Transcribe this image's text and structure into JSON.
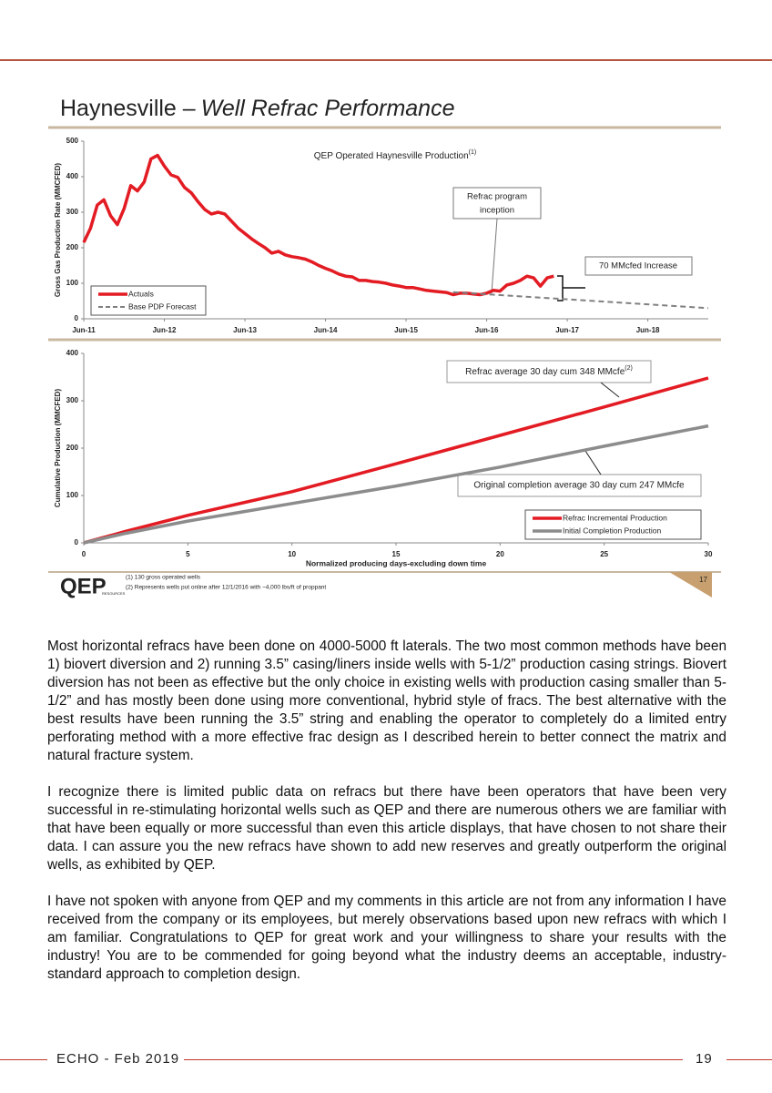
{
  "slide": {
    "title": {
      "main": "Haynesville –",
      "emphasis": "Well Refrac Performance"
    },
    "logo": "QEP",
    "logo_sub": "RESOURCES",
    "footnotes": [
      "(1)   130 gross operated wells",
      "(2)   Represents wells put online after 12/1/2016 with ~4,000 lbs/ft of proppant"
    ],
    "page": "17"
  },
  "chart_data": [
    {
      "type": "line",
      "title": {
        "text": "QEP Operated Haynesville Production",
        "note": "(1)"
      },
      "y_label": "Gross Gas Production Rate (MMCFED)",
      "xlim": [
        "2011-06",
        "2019-03"
      ],
      "xticks": [
        {
          "value": "2011-06",
          "label": "Jun-11"
        },
        {
          "value": "2012-06",
          "label": "Jun-12"
        },
        {
          "value": "2013-06",
          "label": "Jun-13"
        },
        {
          "value": "2014-06",
          "label": "Jun-14"
        },
        {
          "value": "2015-06",
          "label": "Jun-15"
        },
        {
          "value": "2016-06",
          "label": "Jun-16"
        },
        {
          "value": "2017-06",
          "label": "Jun-17"
        },
        {
          "value": "2018-06",
          "label": "Jun-18"
        }
      ],
      "ylim": [
        0,
        500
      ],
      "yticks": [
        0,
        100,
        200,
        300,
        400,
        500
      ],
      "legend": "lower left",
      "annotations": [
        [
          "Refrac program",
          "inception"
        ],
        "70 MMcfed Increase"
      ],
      "series": [
        {
          "name": "Actuals",
          "color": "#e31b23",
          "style": "solid",
          "x": [
            "2011-06",
            "2011-07",
            "2011-08",
            "2011-09",
            "2011-10",
            "2011-11",
            "2011-12",
            "2012-01",
            "2012-02",
            "2012-03",
            "2012-04",
            "2012-05",
            "2012-06",
            "2012-07",
            "2012-08",
            "2012-09",
            "2012-10",
            "2012-11",
            "2012-12",
            "2013-01",
            "2013-02",
            "2013-03",
            "2013-04",
            "2013-05",
            "2013-06",
            "2013-07",
            "2013-08",
            "2013-09",
            "2013-10",
            "2013-11",
            "2013-12",
            "2014-01",
            "2014-02",
            "2014-03",
            "2014-04",
            "2014-05",
            "2014-06",
            "2014-07",
            "2014-08",
            "2014-09",
            "2014-10",
            "2014-11",
            "2014-12",
            "2015-01",
            "2015-02",
            "2015-03",
            "2015-04",
            "2015-05",
            "2015-06",
            "2015-07",
            "2015-08",
            "2015-09",
            "2015-10",
            "2015-11",
            "2015-12",
            "2016-01",
            "2016-02",
            "2016-03",
            "2016-04",
            "2016-05",
            "2016-06",
            "2016-07",
            "2016-08",
            "2016-09",
            "2016-10",
            "2016-11",
            "2016-12",
            "2017-01",
            "2017-02",
            "2017-03",
            "2017-04"
          ],
          "values": [
            215,
            255,
            320,
            335,
            290,
            265,
            310,
            375,
            360,
            385,
            450,
            460,
            430,
            405,
            398,
            370,
            355,
            330,
            308,
            295,
            300,
            295,
            275,
            255,
            240,
            225,
            212,
            200,
            185,
            190,
            180,
            175,
            172,
            168,
            160,
            150,
            142,
            135,
            126,
            120,
            118,
            108,
            108,
            105,
            103,
            100,
            95,
            92,
            88,
            88,
            84,
            80,
            78,
            76,
            74,
            68,
            72,
            72,
            70,
            68,
            72,
            80,
            78,
            95,
            100,
            108,
            120,
            115,
            92,
            115,
            120
          ]
        },
        {
          "name": "Base PDP Forecast",
          "color": "#808080",
          "style": "dashed",
          "x": [
            "2016-01",
            "2019-03"
          ],
          "values": [
            75,
            30
          ]
        }
      ]
    },
    {
      "type": "line",
      "x_label": "Normalized producing days-excluding down time",
      "y_label": "Cumulative Production (MMCFED)",
      "xlim": [
        0,
        30
      ],
      "xticks": [
        0,
        5,
        10,
        15,
        20,
        25,
        30
      ],
      "ylim": [
        0,
        400
      ],
      "yticks": [
        0,
        100,
        200,
        300,
        400
      ],
      "legend": "lower right",
      "annotations": [
        {
          "text": "Refrac average 30 day cum 348 MMcfe",
          "note": "(2)"
        },
        "Original completion average 30 day cum 247 MMcfe"
      ],
      "series": [
        {
          "name": "Refrac Incremental Production",
          "color": "#e31b23",
          "style": "solid",
          "x": [
            0,
            2,
            5,
            10,
            15,
            20,
            25,
            30
          ],
          "values": [
            0,
            24,
            58,
            108,
            167,
            227,
            287,
            348
          ]
        },
        {
          "name": "Initial Completion Production",
          "color": "#8c8c8c",
          "style": "solid",
          "x": [
            0,
            2,
            5,
            10,
            15,
            20,
            25,
            30
          ],
          "values": [
            0,
            20,
            46,
            83,
            120,
            160,
            204,
            247
          ]
        }
      ]
    }
  ],
  "paragraphs": [
    "Most horizontal refracs have been done on 4000-5000 ft laterals. The two most common methods have been 1) biovert diversion and 2) running 3.5” casing/liners inside wells with 5-1/2” production casing strings. Biovert diversion has not been as effective but the only choice in existing wells with production casing smaller than 5-1/2” and has mostly been done using more conventional, hybrid style of fracs. The best alternative with the best results have been running the 3.5” string and enabling the operator to completely do a limited entry perforating method with a more effective frac design as I described herein to better connect the matrix and natural fracture system.",
    "I recognize there is limited public data on refracs but there have been operators that have been very successful in re-stimulating horizontal wells such as QEP and there are numerous others we are familiar with that have been equally or more successful than even this article displays, that have chosen to not share their data. I can assure you the new refracs have shown to add new reserves and greatly outperform the original wells, as exhibited by QEP.",
    "I have not spoken with anyone from QEP and my comments in this article are not from any information I have received from the company or its employees, but merely observations based upon new refracs with which I am familiar. Congratulations to QEP for great work and your willingness to share your results with the industry! You are to be commended for going beyond what the industry deems an acceptable, industry-standard approach to completion design."
  ],
  "footer": {
    "title": "ECHO - Feb 2019",
    "page": "19"
  }
}
